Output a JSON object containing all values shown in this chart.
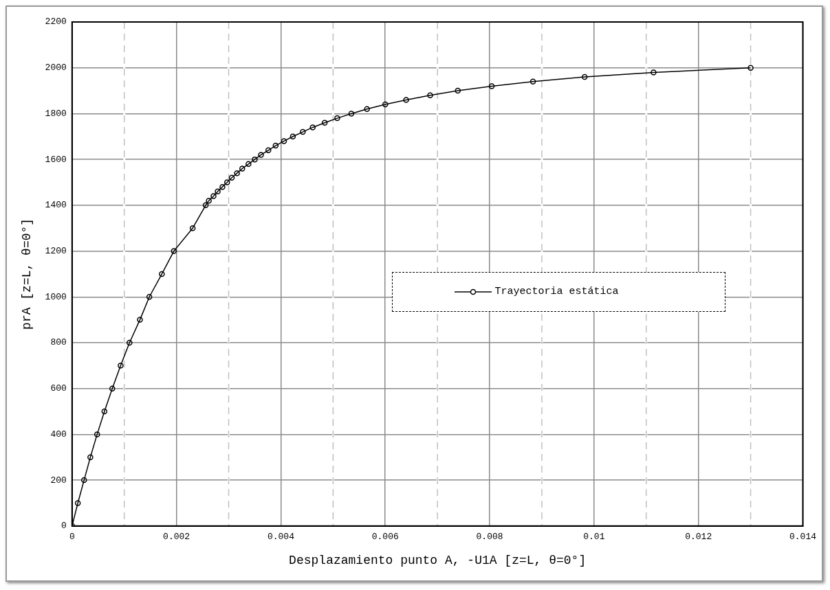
{
  "chart_data": {
    "type": "line",
    "xlabel": "Desplazamiento punto A, -U1A [z=L, θ=0°]",
    "ylabel": "prA [z=L, θ=0°]",
    "xlim": [
      0,
      0.014
    ],
    "xticks": [
      0,
      {
        "value": 0.001,
        "label": null
      },
      0.002,
      {
        "value": 0.003,
        "label": null
      },
      0.004,
      {
        "value": 0.005,
        "label": null
      },
      0.006,
      {
        "value": 0.007,
        "label": null
      },
      0.008,
      {
        "value": 0.009,
        "label": null
      },
      0.01,
      {
        "value": 0.011,
        "label": null
      },
      0.012,
      {
        "value": 0.013,
        "label": null
      },
      0.014
    ],
    "ylim": [
      0,
      2200
    ],
    "yticks": [
      0,
      200,
      400,
      600,
      800,
      1000,
      1200,
      1400,
      1600,
      1800,
      2000,
      2200
    ],
    "grid": true,
    "legend": "right",
    "marker": "circle",
    "line_style": "solid",
    "series": [
      {
        "name": "Trayectoria estática",
        "color": "#000000",
        "x": [
          0,
          0.00011,
          0.00023,
          0.00035,
          0.00048,
          0.00062,
          0.00077,
          0.00093,
          0.0011,
          0.0013,
          0.00148,
          0.00172,
          0.00195,
          0.00231,
          0.00256,
          0.00262,
          0.00271,
          0.00279,
          0.00288,
          0.00297,
          0.00306,
          0.00316,
          0.00326,
          0.00338,
          0.0035,
          0.00362,
          0.00376,
          0.0039,
          0.00406,
          0.00423,
          0.00442,
          0.00461,
          0.00484,
          0.00508,
          0.00535,
          0.00565,
          0.006,
          0.0064,
          0.00686,
          0.00739,
          0.00804,
          0.00883,
          0.00982,
          0.01114,
          0.013
        ],
        "values": [
          0,
          100,
          200,
          300,
          400,
          500,
          600,
          700,
          800,
          900,
          1000,
          1100,
          1200,
          1300,
          1400,
          1420,
          1440,
          1460,
          1480,
          1500,
          1520,
          1540,
          1560,
          1580,
          1600,
          1620,
          1640,
          1660,
          1680,
          1700,
          1720,
          1740,
          1760,
          1780,
          1800,
          1820,
          1840,
          1860,
          1880,
          1900,
          1920,
          1940,
          1960,
          1980,
          2000
        ]
      }
    ]
  }
}
